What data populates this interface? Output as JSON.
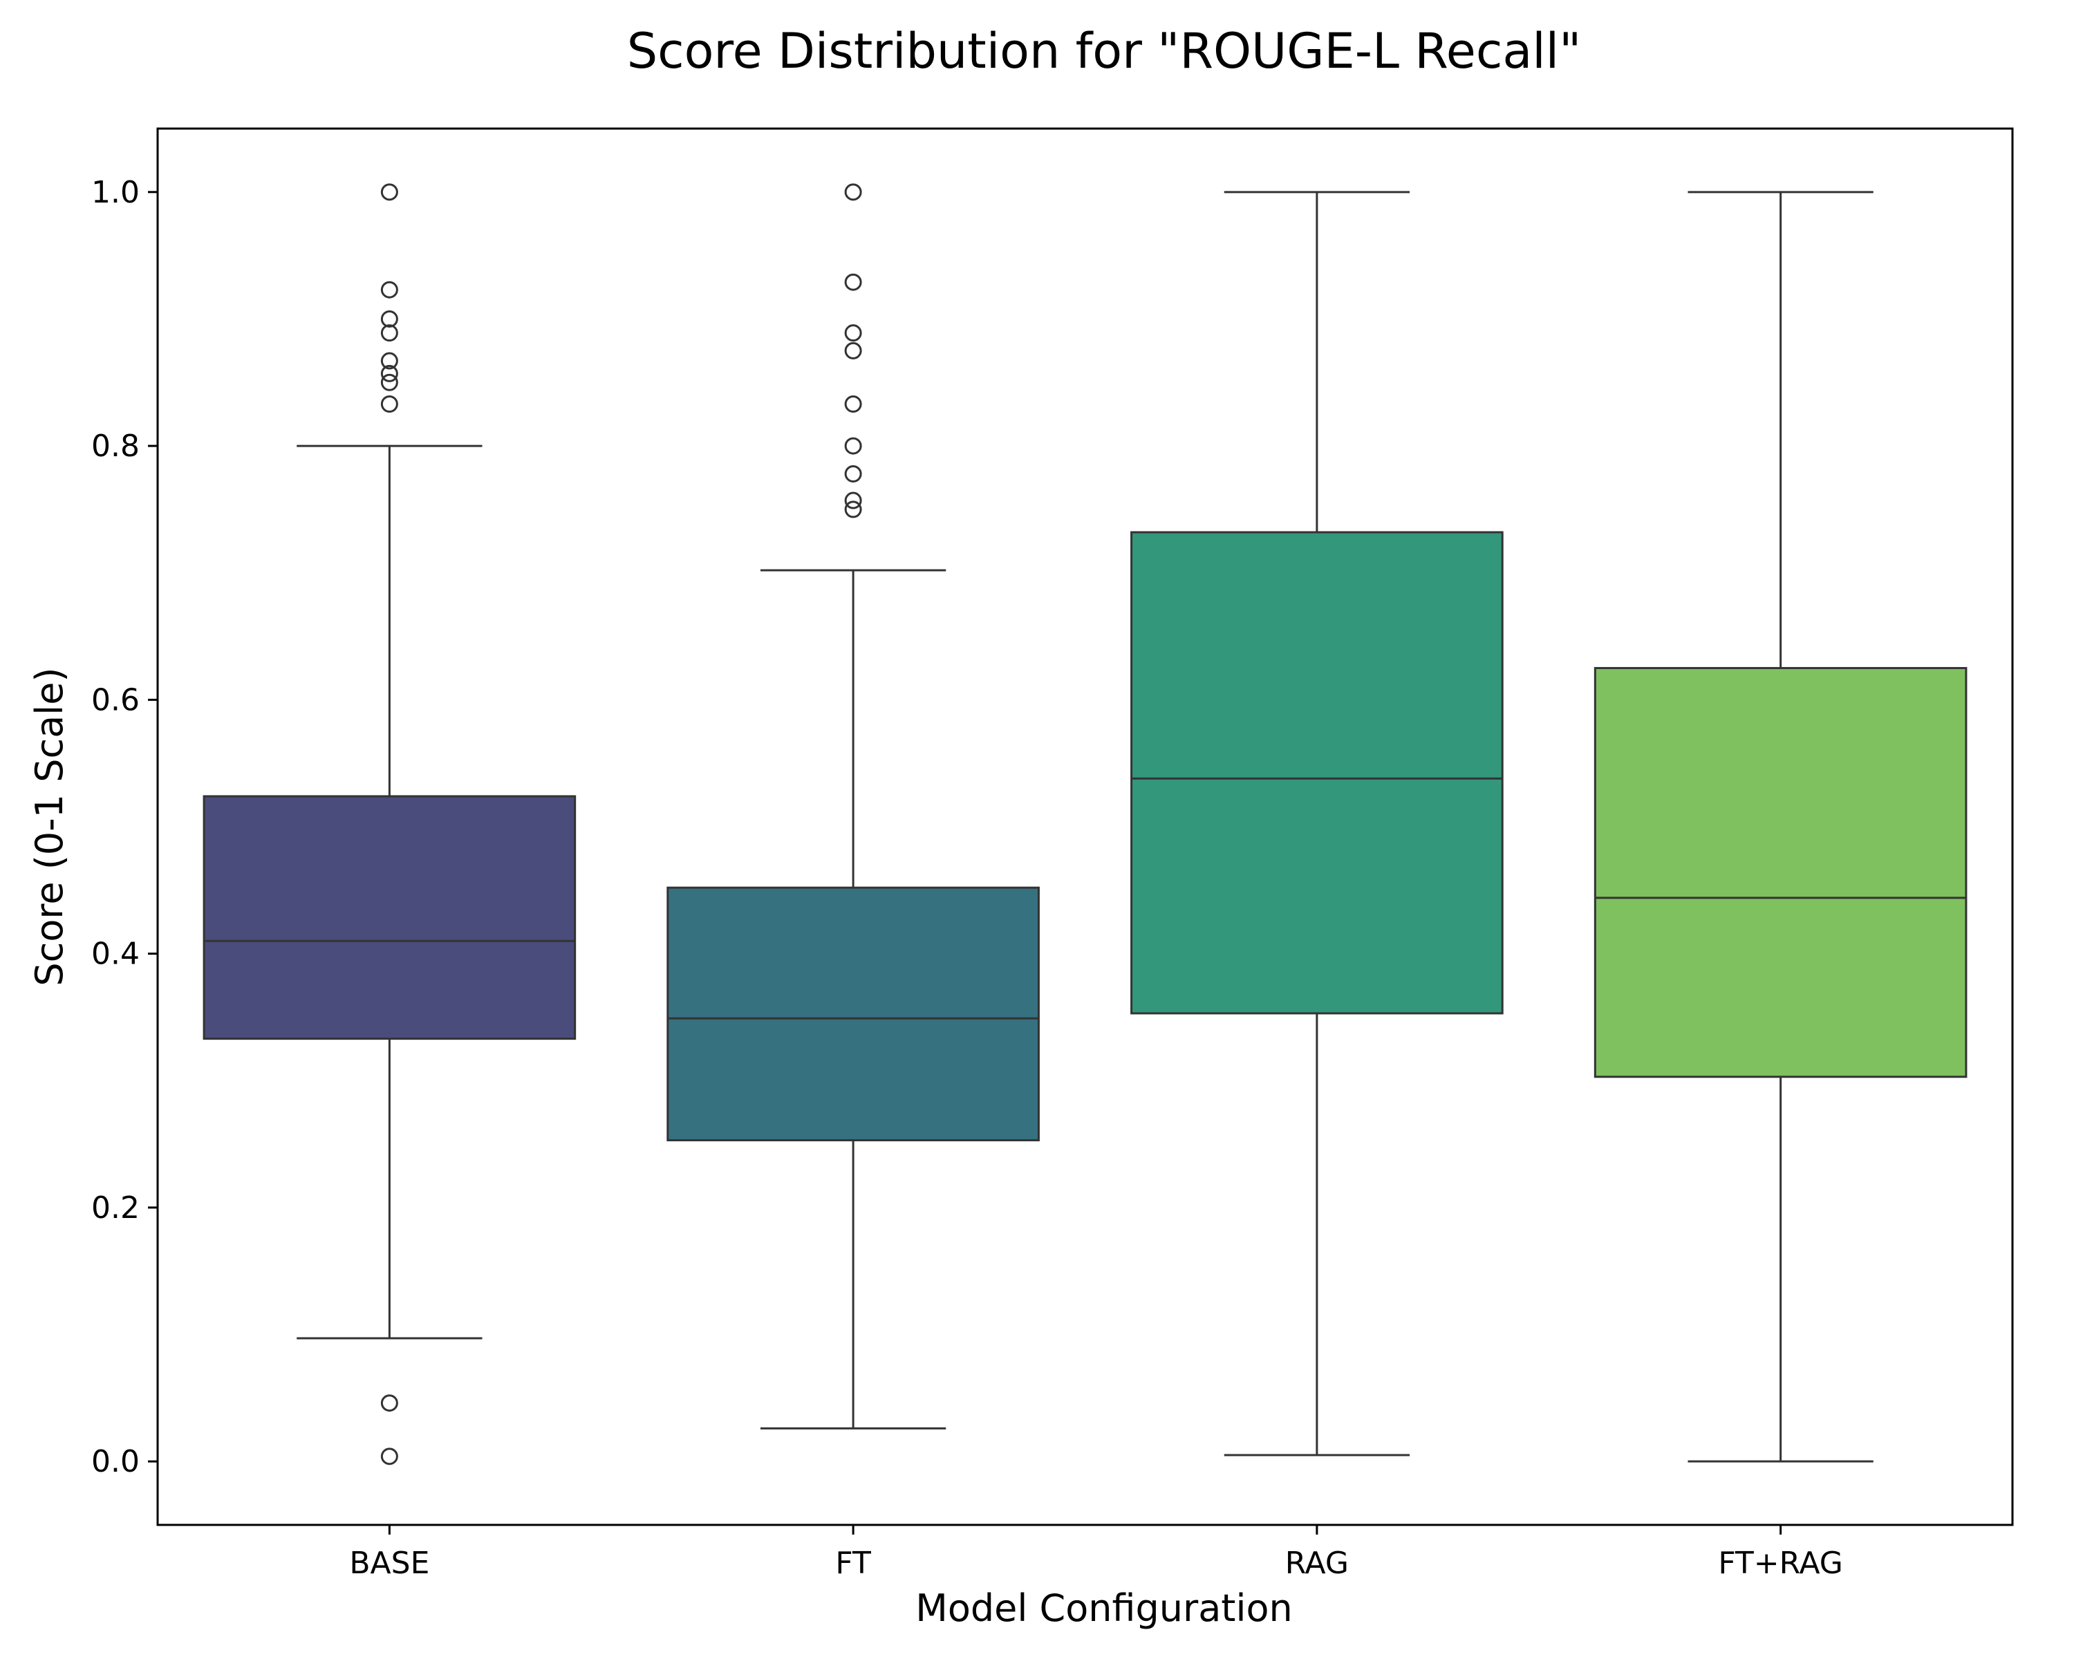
{
  "chart_data": {
    "type": "box",
    "title": "Score Distribution for \"ROUGE-L Recall\"",
    "xlabel": "Model Configuration",
    "ylabel": "Score (0-1 Scale)",
    "ylim": [
      -0.05,
      1.05
    ],
    "yticks": [
      "0.0",
      "0.2",
      "0.4",
      "0.6",
      "0.8",
      "1.0"
    ],
    "grid": false,
    "categories": [
      "BASE",
      "FT",
      "RAG",
      "FT+RAG"
    ],
    "boxes": [
      {
        "category": "BASE",
        "color": "#4a4c7c",
        "whisker_low": 0.097,
        "q1": 0.333,
        "median": 0.41,
        "q3": 0.524,
        "whisker_high": 0.8,
        "outliers": [
          1.0,
          0.923,
          0.9,
          0.889,
          0.867,
          0.857,
          0.85,
          0.833,
          0.046,
          0.004
        ]
      },
      {
        "category": "FT",
        "color": "#367180",
        "whisker_low": 0.026,
        "q1": 0.253,
        "median": 0.349,
        "q3": 0.452,
        "whisker_high": 0.702,
        "outliers": [
          1.0,
          0.929,
          0.889,
          0.875,
          0.833,
          0.8,
          0.778,
          0.757,
          0.75
        ]
      },
      {
        "category": "RAG",
        "color": "#33977c",
        "whisker_low": 0.005,
        "q1": 0.353,
        "median": 0.538,
        "q3": 0.732,
        "whisker_high": 1.0,
        "outliers": []
      },
      {
        "category": "FT+RAG",
        "color": "#7fc15f",
        "whisker_low": 0.0,
        "q1": 0.303,
        "median": 0.444,
        "q3": 0.625,
        "whisker_high": 1.0,
        "outliers": []
      }
    ]
  }
}
